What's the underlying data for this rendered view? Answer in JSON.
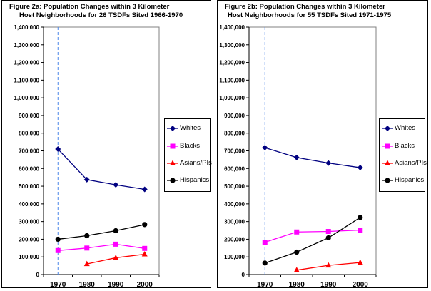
{
  "chart_data": [
    {
      "type": "line",
      "title_line1": "Figure 2a: Population Changes within 3 Kilometer",
      "title_line2": "Host Neighborhoods for 26 TSDFs Sited 1966-1970",
      "xlabel": "",
      "ylabel": "",
      "ylim": [
        0,
        1400000
      ],
      "y_ticks": [
        0,
        100000,
        200000,
        300000,
        400000,
        500000,
        600000,
        700000,
        800000,
        900000,
        1000000,
        1100000,
        1200000,
        1300000,
        1400000
      ],
      "y_tick_labels": [
        "0",
        "100,000",
        "200,000",
        "300,000",
        "400,000",
        "500,000",
        "600,000",
        "700,000",
        "800,000",
        "900,000",
        "1,000,000",
        "1,100,000",
        "1,200,000",
        "1,300,000",
        "1,400,000"
      ],
      "categories": [
        "1970",
        "1980",
        "1990",
        "2000"
      ],
      "reference_line_at": "1970",
      "legend": "right",
      "series": [
        {
          "name": "Whites",
          "color": "#000080",
          "marker": "diamond",
          "values": [
            710000,
            537000,
            508000,
            482000
          ]
        },
        {
          "name": "Blacks",
          "color": "#ff00ff",
          "marker": "square",
          "values": [
            136000,
            150000,
            172000,
            148000
          ]
        },
        {
          "name": "Asians/PIs",
          "color": "#ff0000",
          "marker": "triangle",
          "values": [
            null,
            60000,
            95000,
            115000
          ]
        },
        {
          "name": "Hispanics",
          "color": "#000000",
          "marker": "circle",
          "values": [
            200000,
            220000,
            248000,
            283000
          ]
        }
      ]
    },
    {
      "type": "line",
      "title_line1": "Figure 2b: Population Changes within 3 Kilometer",
      "title_line2": "Host Neighborhoods for 55 TSDFs Sited 1971-1975",
      "xlabel": "",
      "ylabel": "",
      "ylim": [
        0,
        1400000
      ],
      "y_ticks": [
        0,
        100000,
        200000,
        300000,
        400000,
        500000,
        600000,
        700000,
        800000,
        900000,
        1000000,
        1100000,
        1200000,
        1300000,
        1400000
      ],
      "y_tick_labels": [
        "0",
        "100,000",
        "200,000",
        "300,000",
        "400,000",
        "500,000",
        "600,000",
        "700,000",
        "800,000",
        "900,000",
        "1,000,000",
        "1,100,000",
        "1,200,000",
        "1,300,000",
        "1,400,000"
      ],
      "categories": [
        "1970",
        "1980",
        "1990",
        "2000"
      ],
      "reference_line_at": "1970",
      "legend": "right",
      "series": [
        {
          "name": "Whites",
          "color": "#000080",
          "marker": "diamond",
          "values": [
            718000,
            662000,
            631000,
            605000
          ]
        },
        {
          "name": "Blacks",
          "color": "#ff00ff",
          "marker": "square",
          "values": [
            183000,
            241000,
            244000,
            252000
          ]
        },
        {
          "name": "Asians/PIs",
          "color": "#ff0000",
          "marker": "triangle",
          "values": [
            null,
            25000,
            52000,
            68000
          ]
        },
        {
          "name": "Hispanics",
          "color": "#000000",
          "marker": "circle",
          "values": [
            65000,
            127000,
            208000,
            323000
          ]
        }
      ]
    }
  ]
}
